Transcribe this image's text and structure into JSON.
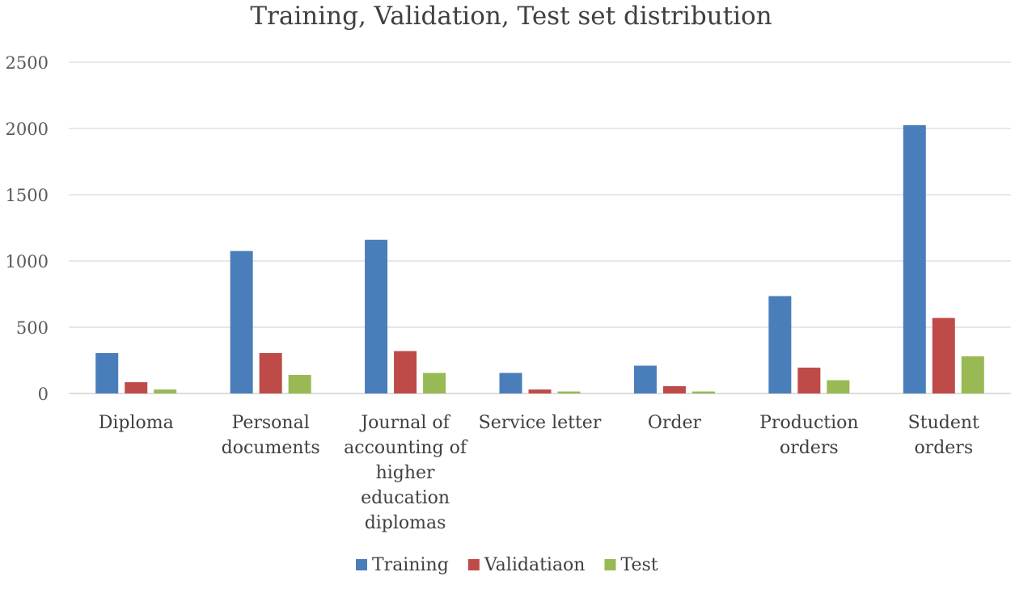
{
  "chart_data": {
    "type": "bar",
    "title": "Training, Validation, Test set distribution",
    "xlabel": "",
    "ylabel": "",
    "ylim": [
      0,
      2500
    ],
    "yticks": [
      0,
      500,
      1000,
      1500,
      2000,
      2500
    ],
    "grid": true,
    "legend_position": "bottom",
    "categories": [
      [
        "Diploma"
      ],
      [
        "Personal",
        "documents"
      ],
      [
        "Journal of",
        "accounting of",
        "higher",
        "education",
        "diplomas"
      ],
      [
        "Service letter"
      ],
      [
        "Order"
      ],
      [
        "Production",
        "orders"
      ],
      [
        "Student",
        "orders"
      ]
    ],
    "series": [
      {
        "name": "Training",
        "color": "#4a7ebb",
        "values": [
          305,
          1075,
          1160,
          155,
          210,
          735,
          2025
        ]
      },
      {
        "name": "Validatiaon",
        "color": "#be4b48",
        "values": [
          85,
          305,
          320,
          30,
          55,
          195,
          570
        ]
      },
      {
        "name": "Test",
        "color": "#98b954",
        "values": [
          30,
          140,
          155,
          15,
          15,
          100,
          280
        ]
      }
    ]
  }
}
